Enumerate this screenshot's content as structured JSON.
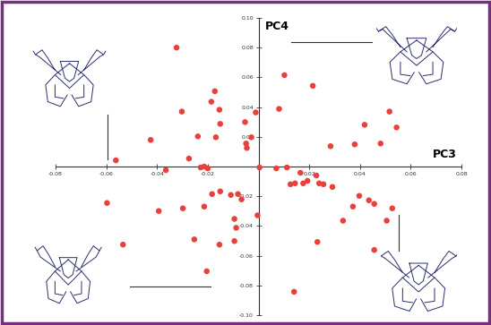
{
  "chart_data": {
    "type": "scatter",
    "x_label": "PC3",
    "y_label": "PC4",
    "color": "#e8413c",
    "marker": "o",
    "x": [
      -0.0323,
      0.0102,
      0.0214,
      -0.0172,
      -0.0186,
      -0.0154,
      -0.0011,
      -0.0302,
      -0.0053,
      0.0081,
      -0.0151,
      0.0516,
      0.0544,
      0.0418,
      -0.0239,
      -0.0168,
      -0.0425,
      -0.0028,
      -0.0049,
      -0.0046,
      0.0379,
      0.0284,
      0.0481,
      -0.0274,
      -0.0365,
      -0.0562,
      -0.0214,
      -0.0228,
      -0.02,
      0.0004,
      0.007,
      0.0112,
      0.0165,
      0.0193,
      0.0228,
      0.0256,
      0.0239,
      0.0144,
      0.0176,
      0.0291,
      0.0126,
      -0.0151,
      -0.0183,
      -0.0109,
      -0.0081,
      -0.0067,
      -0.0214,
      0.0397,
      0.0435,
      0.0456,
      0.0372,
      -0.0597,
      -0.0393,
      -0.0004,
      -0.0298,
      -0.0095,
      0.0505,
      0.0527,
      0.0333,
      -0.0088,
      -0.0534,
      -0.0253,
      0.0232,
      -0.0154,
      -0.0095,
      0.0456,
      -0.0204,
      0.014
    ],
    "y": [
      0.08,
      0.0615,
      0.0543,
      0.0507,
      0.0436,
      0.0382,
      0.0364,
      0.037,
      0.0299,
      0.0388,
      0.0287,
      0.037,
      0.0263,
      0.0281,
      0.0203,
      0.0197,
      0.0179,
      0.0197,
      0.0155,
      0.0125,
      0.0149,
      0.0137,
      0.0155,
      0.0054,
      -0.0024,
      0.0042,
      0.0,
      -0.0006,
      -0.0012,
      -0.0006,
      -0.0012,
      -0.0006,
      -0.0042,
      -0.0096,
      -0.006,
      -0.0119,
      -0.0113,
      -0.0113,
      -0.0113,
      -0.0137,
      -0.0119,
      -0.0167,
      -0.0185,
      -0.0191,
      -0.0185,
      -0.0221,
      -0.0269,
      -0.0197,
      -0.0227,
      -0.0251,
      -0.0269,
      -0.0245,
      -0.0299,
      -0.0328,
      -0.0281,
      -0.0352,
      -0.0364,
      -0.0281,
      -0.0364,
      -0.0412,
      -0.0525,
      -0.049,
      -0.0507,
      -0.0525,
      -0.0501,
      -0.0561,
      -0.0704,
      -0.0842
    ],
    "xlim": [
      -0.08,
      0.08
    ],
    "ylim": [
      -0.1,
      0.1
    ],
    "xticks": [
      {
        "value": -0.08,
        "label": "-0.08"
      },
      {
        "value": -0.06,
        "label": "-0.06"
      },
      {
        "value": -0.04,
        "label": "-0.04"
      },
      {
        "value": -0.02,
        "label": "-0.02"
      },
      {
        "value": 0.02,
        "label": "0.02"
      },
      {
        "value": 0.04,
        "label": "0.04"
      },
      {
        "value": 0.06,
        "label": "0.06"
      },
      {
        "value": 0.08,
        "label": "0.08"
      }
    ],
    "yticks": [
      {
        "value": -0.1,
        "label": "-0.10"
      },
      {
        "value": -0.08,
        "label": "-0.08"
      },
      {
        "value": -0.06,
        "label": "-0.06"
      },
      {
        "value": -0.04,
        "label": "-0.04"
      },
      {
        "value": -0.02,
        "label": "-0.02"
      },
      {
        "value": 0.02,
        "label": "0.02"
      },
      {
        "value": 0.04,
        "label": "0.04"
      },
      {
        "value": 0.06,
        "label": "0.06"
      },
      {
        "value": 0.08,
        "label": "0.08"
      },
      {
        "value": 0.1,
        "label": "0.10"
      }
    ]
  }
}
